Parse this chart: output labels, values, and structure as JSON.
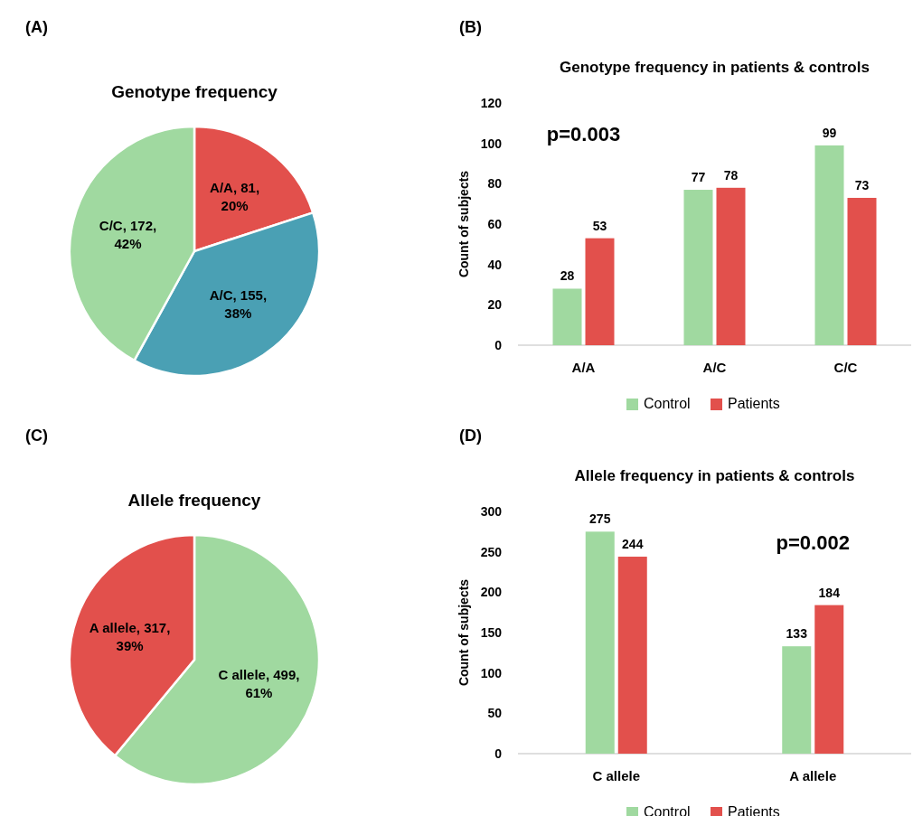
{
  "chart_data": [
    {
      "type": "pie",
      "title": "Genotype frequency",
      "annotations": [
        "(A)"
      ],
      "categories": [
        "A/A",
        "A/C",
        "C/C"
      ],
      "values": [
        20,
        38,
        42
      ],
      "value_labels": [
        "81, 20%",
        "155, 38%",
        "172, 42%"
      ],
      "colors": [
        "#e2504c",
        "#4aa0b4",
        "#a0d9a0"
      ]
    },
    {
      "type": "bar",
      "title": "Genotype frequency in patients & controls",
      "annotations": [
        "(B)",
        "p=0.003"
      ],
      "ylabel": "Count of subjects",
      "categories": [
        "A/A",
        "A/C",
        "C/C"
      ],
      "series": [
        {
          "name": "Control",
          "color": "#a0d9a0",
          "values": [
            28,
            77,
            99
          ]
        },
        {
          "name": "Patients",
          "color": "#e2504c",
          "values": [
            53,
            78,
            73
          ]
        }
      ],
      "ylim": [
        0,
        120
      ],
      "yticks": [
        0,
        20,
        40,
        60,
        80,
        100,
        120
      ],
      "data_labels": true,
      "legend": "bottom"
    },
    {
      "type": "pie",
      "title": "Allele frequency",
      "annotations": [
        "(C)"
      ],
      "categories": [
        "C allele",
        "A allele"
      ],
      "values": [
        61,
        39
      ],
      "value_labels": [
        "499, 61%",
        "317, 39%"
      ],
      "colors": [
        "#a0d9a0",
        "#e2504c"
      ]
    },
    {
      "type": "bar",
      "title": "Allele frequency in patients & controls",
      "annotations": [
        "(D)",
        "p=0.002"
      ],
      "ylabel": "Count of subjects",
      "categories": [
        "C allele",
        "A allele"
      ],
      "series": [
        {
          "name": "Control",
          "color": "#a0d9a0",
          "values": [
            275,
            133
          ]
        },
        {
          "name": "Patients",
          "color": "#e2504c",
          "values": [
            244,
            184
          ]
        }
      ],
      "ylim": [
        0,
        300
      ],
      "yticks": [
        0,
        50,
        100,
        150,
        200,
        250,
        300
      ],
      "data_labels": true,
      "legend": "bottom"
    }
  ]
}
